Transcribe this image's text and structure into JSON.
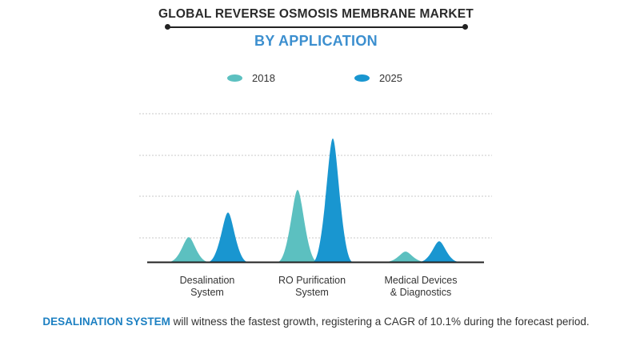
{
  "title": "GLOBAL REVERSE OSMOSIS MEMBRANE MARKET",
  "subtitle": "BY APPLICATION",
  "colors": {
    "2018": "#5cc0c0",
    "2025": "#1996d0",
    "accent": "#1d80c2"
  },
  "chart_data": {
    "type": "area",
    "categories": [
      [
        "Desalination",
        "System"
      ],
      [
        "RO Purification",
        "System"
      ],
      [
        "Medical Devices",
        "& Diagnostics"
      ]
    ],
    "series": [
      {
        "name": "2018",
        "values": [
          0.6,
          1.75,
          0.25
        ]
      },
      {
        "name": "2025",
        "values": [
          1.2,
          3.0,
          0.5
        ]
      }
    ],
    "ylim": [
      0,
      3.6
    ],
    "grid": true,
    "legend": "top-center",
    "xlabel": "",
    "ylabel": ""
  },
  "footnote": {
    "highlight": "DESALINATION SYSTEM",
    "text": " will witness the fastest growth, registering a CAGR of 10.1% during the forecast period."
  }
}
